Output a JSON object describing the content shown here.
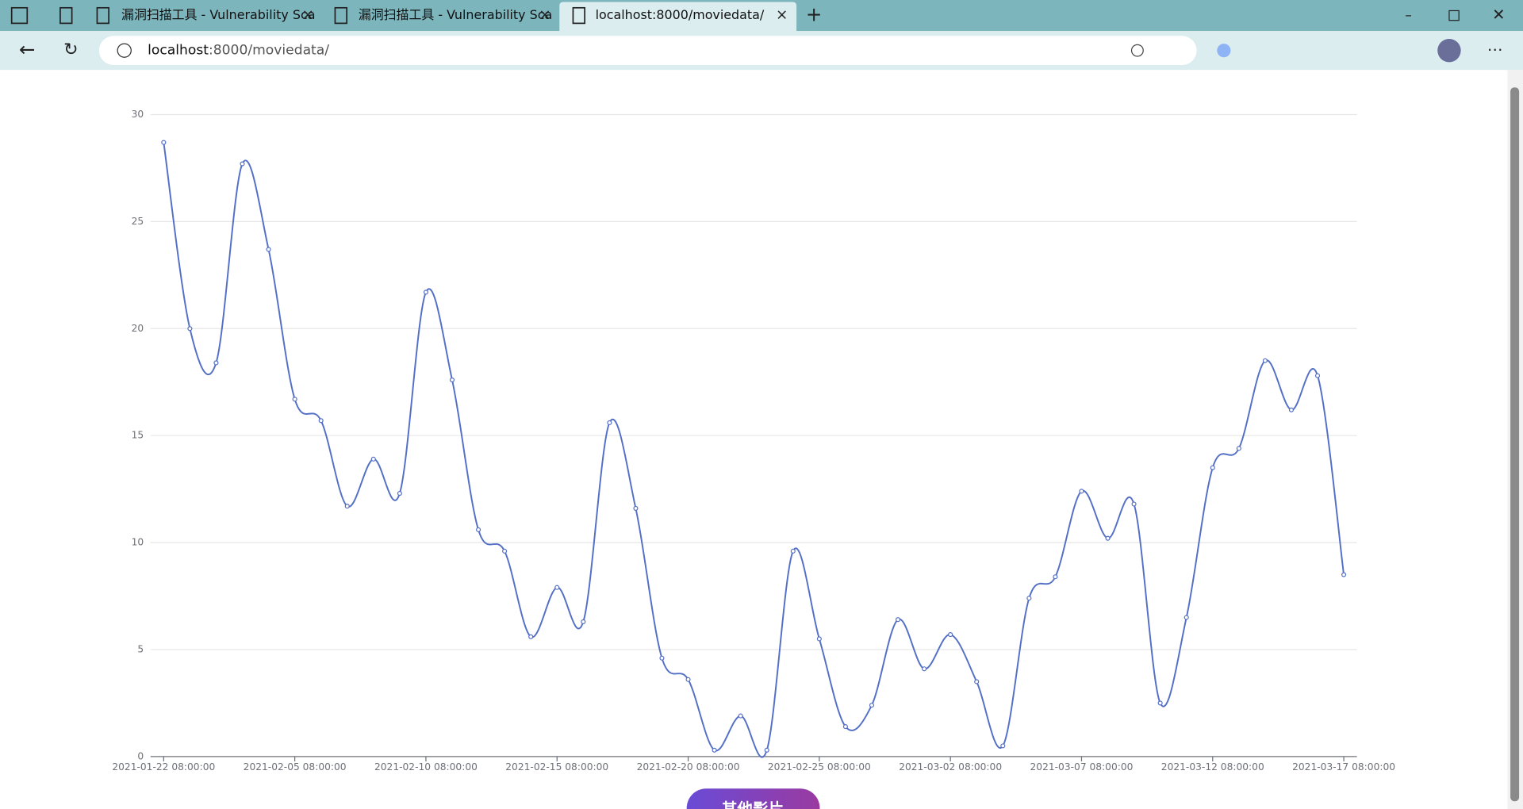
{
  "browser": {
    "tabs": [
      "漏洞扫描工具 - Vulnerability Sca",
      "漏洞扫描工具 - Vulnerability Sca",
      "localhost:8000/moviedata/"
    ],
    "url_host": "localhost",
    "url_path": ":8000/moviedata/"
  },
  "chart_data": {
    "type": "line",
    "color": "#5470c6",
    "smooth": true,
    "grid": true,
    "categories": [
      "2021-01-22 08:00:00",
      null,
      null,
      null,
      null,
      "2021-02-05 08:00:00",
      null,
      null,
      null,
      null,
      "2021-02-10 08:00:00",
      null,
      null,
      null,
      null,
      "2021-02-15 08:00:00",
      null,
      null,
      null,
      null,
      "2021-02-20 08:00:00",
      null,
      null,
      null,
      null,
      "2021-02-25 08:00:00",
      null,
      null,
      null,
      null,
      "2021-03-02 08:00:00",
      null,
      null,
      null,
      null,
      "2021-03-07 08:00:00",
      null,
      null,
      null,
      null,
      "2021-03-12 08:00:00",
      null,
      null,
      null,
      null,
      "2021-03-17 08:00:00"
    ],
    "values": [
      28.7,
      20.0,
      18.4,
      27.7,
      23.7,
      16.7,
      15.7,
      11.7,
      13.9,
      12.3,
      21.7,
      17.6,
      10.6,
      9.6,
      5.6,
      7.9,
      6.3,
      15.6,
      11.6,
      4.6,
      3.6,
      0.3,
      1.9,
      0.3,
      9.6,
      5.5,
      1.4,
      2.4,
      6.4,
      4.1,
      5.7,
      3.5,
      0.5,
      7.4,
      8.4,
      12.4,
      10.2,
      11.8,
      2.5,
      6.5,
      13.5,
      14.4,
      18.5,
      16.2,
      17.8,
      8.5
    ],
    "ylim": [
      0,
      30
    ],
    "yticks": [
      0,
      5,
      10,
      15,
      20,
      25,
      30
    ]
  },
  "button": "其他影片"
}
